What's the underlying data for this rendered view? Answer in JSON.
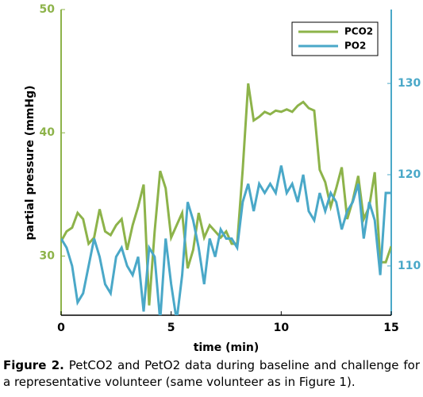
{
  "chart_data": {
    "type": "line",
    "xlabel": "time (min)",
    "ylabel": "partial pressure (mmHg)",
    "x": [
      0,
      0.25,
      0.5,
      0.75,
      1,
      1.25,
      1.5,
      1.75,
      2,
      2.25,
      2.5,
      2.75,
      3,
      3.25,
      3.5,
      3.75,
      4,
      4.25,
      4.5,
      4.75,
      5,
      5.25,
      5.5,
      5.75,
      6,
      6.25,
      6.5,
      6.75,
      7,
      7.25,
      7.5,
      7.75,
      8,
      8.25,
      8.5,
      8.75,
      9,
      9.25,
      9.5,
      9.75,
      10,
      10.25,
      10.5,
      10.75,
      11,
      11.25,
      11.5,
      11.75,
      12,
      12.25,
      12.5,
      12.75,
      13,
      13.25,
      13.5,
      13.75,
      14,
      14.25,
      14.5,
      14.75,
      15
    ],
    "series": [
      {
        "name": "PCO2",
        "color": "#8db34a",
        "axis": "y",
        "values": [
          31.2,
          32,
          32.3,
          33.5,
          33,
          31,
          31.5,
          33.8,
          32,
          31.7,
          32.5,
          33,
          30.5,
          32.5,
          34,
          35.8,
          26,
          32,
          36.9,
          35.5,
          31.5,
          32.5,
          33.5,
          29,
          30.5,
          33.5,
          31.5,
          32.5,
          32,
          31.5,
          32,
          31,
          31,
          37,
          44,
          41,
          41.3,
          41.7,
          41.5,
          41.8,
          41.7,
          41.9,
          41.7,
          42.2,
          42.5,
          42,
          41.8,
          37,
          36,
          34,
          35.5,
          37.2,
          33,
          34.5,
          36.5,
          33,
          34,
          36.8,
          29.5,
          29.5,
          30.8
        ]
      },
      {
        "name": "PO2",
        "color": "#4aa8c8",
        "axis": "y2",
        "values": [
          113,
          112,
          110,
          106,
          107,
          110,
          113,
          111,
          108,
          107,
          111,
          112,
          110,
          109,
          111,
          105,
          112,
          111,
          104,
          113,
          108,
          104,
          109,
          117,
          115,
          112,
          108,
          113,
          111,
          114,
          113,
          113,
          112,
          117,
          119,
          116,
          119,
          118,
          119,
          118,
          121,
          118,
          119,
          117,
          120,
          116,
          115,
          118,
          116,
          118,
          117,
          114,
          116,
          117,
          119,
          113,
          117,
          115,
          109,
          118,
          118
        ]
      }
    ],
    "xlim": [
      0,
      15
    ],
    "xticks": [
      0,
      5,
      10,
      15
    ],
    "ylim": [
      25.2,
      50
    ],
    "yticks": [
      30,
      40,
      50
    ],
    "y2lim": [
      104.6,
      138.1
    ],
    "y2ticks": [
      110,
      120,
      130
    ],
    "legend": "top-right"
  },
  "caption": {
    "label": "Figure 2.",
    "text": "PetCO2 and PetO2 data during baseline and challenge for a representative volunteer (same volunteer as in Figure 1)."
  }
}
